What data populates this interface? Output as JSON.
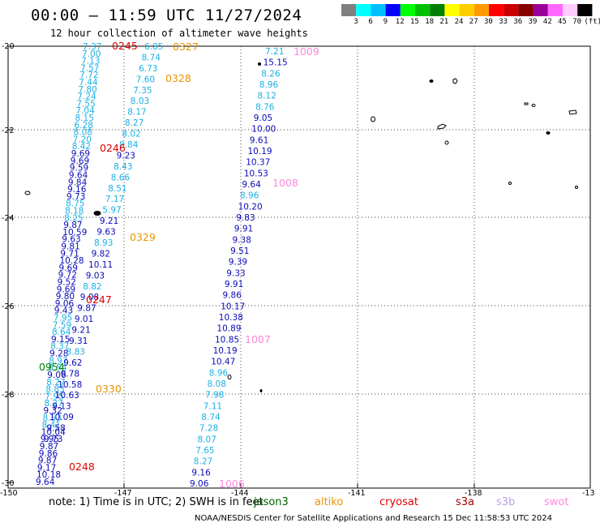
{
  "header": {
    "title": "00:00 – 11:59 UTC 11/27/2024",
    "subtitle": "12 hour collection of altimeter wave heights"
  },
  "colorbar": {
    "colors": [
      "#7f7f7f",
      "#00ffff",
      "#00bfff",
      "#0000ff",
      "#00ff00",
      "#00c000",
      "#008000",
      "#ffff00",
      "#ffcc00",
      "#ff9900",
      "#ff0000",
      "#cc0000",
      "#880000",
      "#990099",
      "#ff66ff",
      "#ffccff",
      "#000000"
    ],
    "ticks": [
      "3",
      "6",
      "9",
      "12",
      "15",
      "18",
      "21",
      "24",
      "27",
      "30",
      "33",
      "36",
      "39",
      "42",
      "45",
      "70"
    ],
    "unit": "(ft)"
  },
  "axes": {
    "lon_ticks": [
      "-150",
      "-147",
      "-144",
      "-141",
      "-138",
      "-13"
    ],
    "lat_ticks": [
      "-20",
      "-22",
      "-24",
      "-26",
      "-28",
      "-30"
    ]
  },
  "passes": {
    "p0245": {
      "label": "0245",
      "color": "#e00000"
    },
    "p0327": {
      "label": "0327",
      "color": "#e89400"
    },
    "p1009": {
      "label": "1009",
      "color": "#ff88dd"
    },
    "p0328": {
      "label": "0328",
      "color": "#e89400"
    },
    "p0246": {
      "label": "0246",
      "color": "#e00000"
    },
    "p1008": {
      "label": "1008",
      "color": "#ff88dd"
    },
    "p0329": {
      "label": "0329",
      "color": "#e89400"
    },
    "p0247": {
      "label": "0247",
      "color": "#e00000"
    },
    "p1007": {
      "label": "1007",
      "color": "#ff88dd"
    },
    "p0954": {
      "label": "0954",
      "color": "#008000"
    },
    "p0330": {
      "label": "0330",
      "color": "#e89400"
    },
    "p0248": {
      "label": "0248",
      "color": "#e00000"
    },
    "p1006": {
      "label": "1006",
      "color": "#ff88dd"
    }
  },
  "track_labels": {
    "t1": [
      "7.37",
      "7.00",
      "7.13",
      "7.57",
      "7.72",
      "7.44",
      "7.80",
      "7.24",
      "7.55",
      "7.04",
      "8.15",
      "6.28",
      "8.08",
      "7.20",
      "8.42",
      "9.69",
      "9.69",
      "9.59",
      "9.64",
      "9.84",
      "9.16",
      "9.73",
      "8.75",
      "8.18",
      "8.25",
      "9.87",
      "10.59",
      "9.63",
      "9.81",
      "9.71",
      "10.28",
      "9.69",
      "9.72",
      "9.52",
      "9.69",
      "9.80",
      "9.06",
      "9.43",
      "7.95",
      "7.59",
      "8.64",
      "9.15",
      "8.37",
      "9.28",
      "8.97",
      "8.54",
      "9.06",
      "8.27",
      "8.83",
      "7.95",
      "8.27",
      "9.32",
      "8.53",
      "8.41",
      "10.04",
      "9.95",
      "9.87",
      "9.86",
      "9.87",
      "9.17",
      "10.18",
      "9.64"
    ],
    "t2": [
      "6.85",
      "8.74",
      "6.73",
      "7.60",
      "7.35",
      "8.03",
      "8.17",
      "8.27",
      "8.02",
      "8.84",
      "9.23",
      "8.43",
      "8.66",
      "8.51",
      "7.17",
      "5.97",
      "9.21",
      "9.63",
      "8.93",
      "9.82",
      "10.11",
      "9.03",
      "8.82",
      "9.08",
      "9.87",
      "9.01",
      "9.21",
      "9.31",
      "8.83",
      "9.62",
      "9.78",
      "10.58",
      "10.63",
      "9.13",
      "10.09",
      "9.58",
      "9.73"
    ],
    "t3": [
      "7.21",
      "15.15",
      "8.26",
      "8.96",
      "8.12",
      "8.76",
      "9.05",
      "10.00",
      "9.61",
      "10.19",
      "10.37",
      "10.53",
      "9.64",
      "8.96",
      "10.20",
      "9.83",
      "9.91",
      "9.38",
      "9.51",
      "9.39",
      "9.33",
      "9.91",
      "9.86",
      "10.17",
      "10.38",
      "10.89",
      "10.85",
      "10.19",
      "10.47",
      "8.96",
      "8.08",
      "7.98",
      "7.11",
      "8.74",
      "7.28",
      "8.07",
      "7.65",
      "8.27",
      "9.16",
      "9.06"
    ]
  },
  "legend": {
    "note": "note: 1) Time is in UTC; 2) SWH is in feet",
    "missions": [
      {
        "name": "jason3",
        "color": "#006400"
      },
      {
        "name": "altiko",
        "color": "#e89400"
      },
      {
        "name": "cryosat",
        "color": "#e00000"
      },
      {
        "name": "s3a",
        "color": "#a00000"
      },
      {
        "name": "s3b",
        "color": "#b8a0e8"
      },
      {
        "name": "swot",
        "color": "#ff88dd"
      }
    ]
  },
  "footer": "NOAA/NESDIS Center for Satellite Applications and Research   15 Dec 11:58:53 UTC 2024"
}
